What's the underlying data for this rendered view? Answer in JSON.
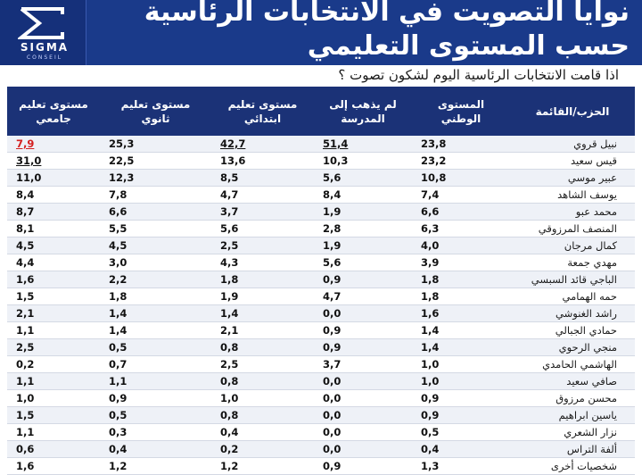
{
  "header": {
    "title_line1": "نوايا التصويت في الانتخابات  الرئاسية",
    "title_line2": "حسب المستوى التعليمي",
    "logo_name": "SIGMA",
    "logo_sub": "CONSEIL"
  },
  "question": "اذا قامت الانتخابات الرئاسية اليوم لشكون تصوت ؟",
  "table": {
    "columns": [
      "الحزب/القائمة",
      "المستوى الوطني",
      "لم يذهب إلى المدرسة",
      "مستوى تعليم ابتدائي",
      "مستوى تعليم ثانوي",
      "مستوى تعليم جامعي"
    ],
    "rows": [
      {
        "name": "نبيل قروي",
        "v": [
          "23,8",
          "51,4",
          "42,7",
          "25,3",
          "7,9"
        ]
      },
      {
        "name": "قيس سعيد",
        "v": [
          "23,2",
          "10,3",
          "13,6",
          "22,5",
          "31,0"
        ]
      },
      {
        "name": "عبير موسي",
        "v": [
          "10,8",
          "5,6",
          "8,5",
          "12,3",
          "11,0"
        ]
      },
      {
        "name": "يوسف الشاهد",
        "v": [
          "7,4",
          "8,4",
          "4,7",
          "7,8",
          "8,4"
        ]
      },
      {
        "name": "محمد عبو",
        "v": [
          "6,6",
          "1,9",
          "3,7",
          "6,6",
          "8,7"
        ]
      },
      {
        "name": "المنصف المرزوقي",
        "v": [
          "6,3",
          "2,8",
          "5,6",
          "5,5",
          "8,1"
        ]
      },
      {
        "name": "كمال مرجان",
        "v": [
          "4,0",
          "1,9",
          "2,5",
          "4,5",
          "4,5"
        ]
      },
      {
        "name": "مهدي جمعة",
        "v": [
          "3,9",
          "5,6",
          "4,3",
          "3,0",
          "4,4"
        ]
      },
      {
        "name": "الباجي قائد السبسي",
        "v": [
          "1,8",
          "0,9",
          "1,8",
          "2,2",
          "1,6"
        ]
      },
      {
        "name": "حمه الهمامي",
        "v": [
          "1,8",
          "4,7",
          "1,9",
          "1,8",
          "1,5"
        ]
      },
      {
        "name": "راشد الغنوشي",
        "v": [
          "1,6",
          "0,0",
          "1,4",
          "1,4",
          "2,1"
        ]
      },
      {
        "name": "حمادي الجبالي",
        "v": [
          "1,4",
          "0,9",
          "2,1",
          "1,4",
          "1,1"
        ]
      },
      {
        "name": "منجي الرحوي",
        "v": [
          "1,4",
          "0,9",
          "0,8",
          "0,5",
          "2,5"
        ]
      },
      {
        "name": "الهاشمي الحامدي",
        "v": [
          "1,0",
          "3,7",
          "2,5",
          "0,7",
          "0,2"
        ]
      },
      {
        "name": "صافي سعيد",
        "v": [
          "1,0",
          "0,0",
          "0,8",
          "1,1",
          "1,1"
        ]
      },
      {
        "name": "محسن مرزوق",
        "v": [
          "0,9",
          "0,0",
          "1,0",
          "0,9",
          "1,0"
        ]
      },
      {
        "name": "ياسين ابراهيم",
        "v": [
          "0,9",
          "0,0",
          "0,8",
          "0,5",
          "1,5"
        ]
      },
      {
        "name": "نزار الشعري",
        "v": [
          "0,5",
          "0,0",
          "0,4",
          "0,3",
          "1,1"
        ]
      },
      {
        "name": "ألفة التراس",
        "v": [
          "0,4",
          "0,0",
          "0,2",
          "0,4",
          "0,6"
        ]
      },
      {
        "name": "شخصيات أخرى",
        "v": [
          "1,3",
          "0,9",
          "1,2",
          "1,2",
          "1,6"
        ]
      }
    ],
    "highlights": [
      {
        "row": 0,
        "col": 1,
        "style": "u"
      },
      {
        "row": 0,
        "col": 2,
        "style": "u"
      },
      {
        "row": 0,
        "col": 4,
        "style": "red"
      },
      {
        "row": 1,
        "col": 4,
        "style": "u"
      }
    ]
  },
  "colors": {
    "header_bg": "#1a3a8a",
    "table_header_bg": "#1b3277",
    "highlight_red": "#d42020"
  }
}
